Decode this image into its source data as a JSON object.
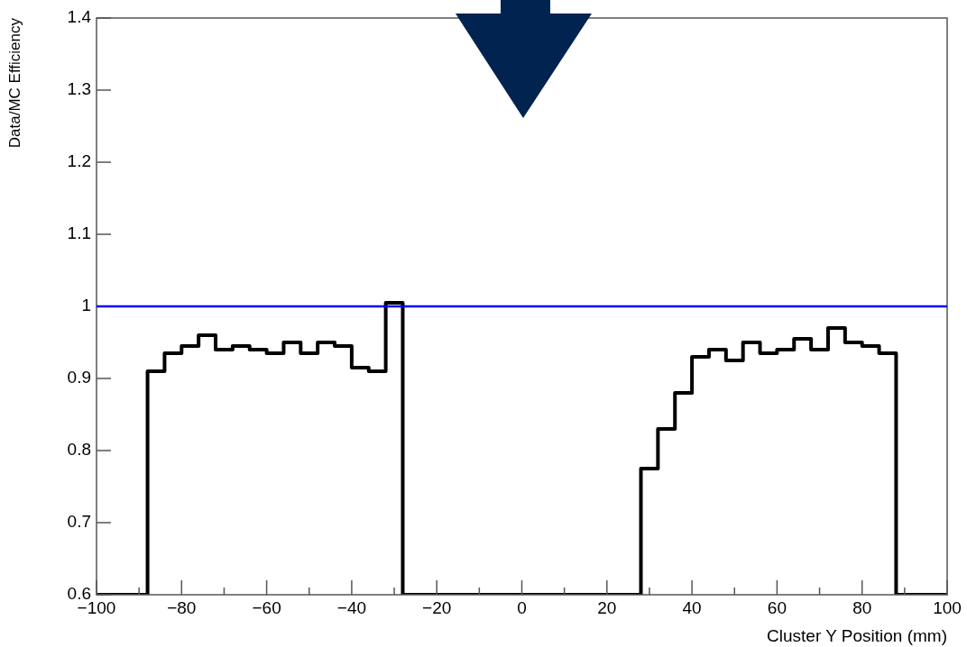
{
  "chart_data": {
    "type": "histogram",
    "xlabel": "Cluster Y Position (mm)",
    "ylabel": "Data/MC Efficiency",
    "color": "#000000",
    "bins": [
      -100,
      -96,
      -92,
      -88,
      -84,
      -80,
      -76,
      -72,
      -68,
      -64,
      -60,
      -56,
      -52,
      -48,
      -44,
      -40,
      -36,
      -32,
      -28,
      -24,
      -20,
      -16,
      -12,
      -8,
      -4,
      0,
      4,
      8,
      12,
      16,
      20,
      24,
      28,
      32,
      36,
      40,
      44,
      48,
      52,
      56,
      60,
      64,
      68,
      72,
      76,
      80,
      84,
      88,
      92,
      96,
      100
    ],
    "values": [
      0.6,
      0.6,
      0.6,
      0.91,
      0.935,
      0.945,
      0.96,
      0.94,
      0.945,
      0.94,
      0.935,
      0.95,
      0.935,
      0.95,
      0.945,
      0.915,
      0.91,
      1.005,
      0.6,
      0.6,
      0.6,
      0.6,
      0.6,
      0.6,
      0.6,
      0.6,
      0.6,
      0.6,
      0.6,
      0.6,
      0.6,
      0.6,
      0.775,
      0.83,
      0.88,
      0.93,
      0.94,
      0.925,
      0.95,
      0.935,
      0.94,
      0.955,
      0.94,
      0.97,
      0.95,
      0.945,
      0.935,
      0.6,
      0.6,
      0.6
    ],
    "xlim": [
      -100,
      100
    ],
    "xticks": [
      {
        "value": -100,
        "label": "−100"
      },
      {
        "value": -90,
        "label": null
      },
      {
        "value": -80,
        "label": "−80"
      },
      {
        "value": -70,
        "label": null
      },
      {
        "value": -60,
        "label": "−60"
      },
      {
        "value": -50,
        "label": null
      },
      {
        "value": -40,
        "label": "−40"
      },
      {
        "value": -30,
        "label": null
      },
      {
        "value": -20,
        "label": "−20"
      },
      {
        "value": -10,
        "label": null
      },
      0,
      {
        "value": 10,
        "label": null
      },
      20,
      {
        "value": 30,
        "label": null
      },
      40,
      {
        "value": 50,
        "label": null
      },
      60,
      {
        "value": 70,
        "label": null
      },
      80,
      {
        "value": 90,
        "label": null
      },
      100
    ],
    "ylim": [
      0.6,
      1.4
    ],
    "yticks": [
      0.6,
      0.7,
      0.8,
      0.9,
      1,
      1.1,
      1.2,
      1.3,
      1.4
    ],
    "ref_lines": [
      {
        "axis": "y",
        "value": 1,
        "color": "#0000ff"
      }
    ]
  }
}
